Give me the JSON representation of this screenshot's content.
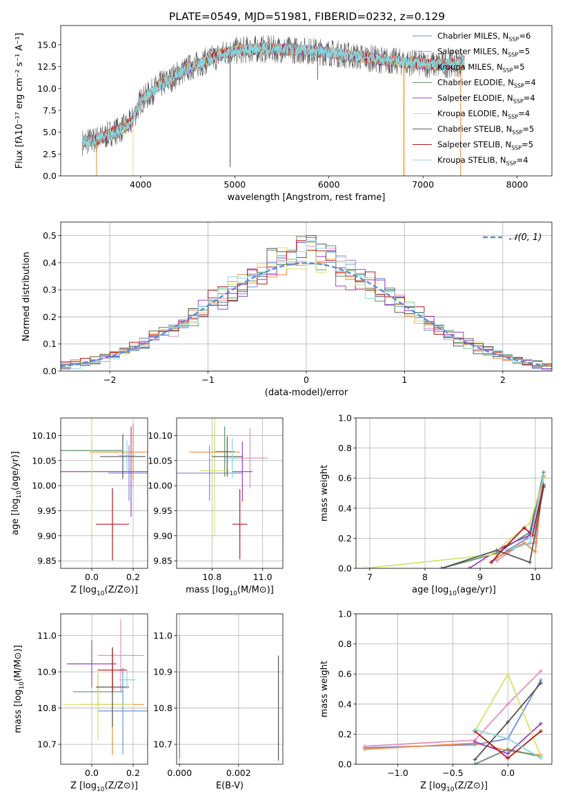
{
  "figure_title": "PLATE=0549, MJD=51981, FIBERID=0232, z=0.129",
  "series_colors": [
    "#6b8fd6",
    "#e58fc0",
    "#f08a3c",
    "#5e8f66",
    "#9b3fc6",
    "#d6e26a",
    "#555555",
    "#b5161b",
    "#86d6e0"
  ],
  "chart_data": [
    {
      "id": "spectrum",
      "type": "line",
      "title": "PLATE=0549, MJD=51981, FIBERID=0232, z=0.129",
      "xlabel": "wavelength [Angstrom, rest frame]",
      "ylabel": "Flux [fλ10⁻¹⁷ erg cm⁻² s⁻¹ A⁻¹]",
      "xlim": [
        3150,
        8370
      ],
      "ylim": [
        0,
        17.2
      ],
      "xticks": [
        4000,
        5000,
        6000,
        7000,
        8000
      ],
      "yticks": [
        0.0,
        2.5,
        5.0,
        7.5,
        10.0,
        12.5,
        15.0
      ],
      "grid": false,
      "legend_position": "top-right",
      "series": [
        {
          "name": "Chabrier MILES, N_SSP=6",
          "name_base": "Chabrier MILES, N",
          "name_sub": "SSP",
          "name_tail": "=6",
          "color": "#6b8fd6"
        },
        {
          "name": "Salpeter MILES, N_SSP=5",
          "name_base": "Salpeter MILES, N",
          "name_sub": "SSP",
          "name_tail": "=5",
          "color": "#e58fc0"
        },
        {
          "name": "Kroupa MILES, N_SSP=5",
          "name_base": "Kroupa MILES, N",
          "name_sub": "SSP",
          "name_tail": "=5",
          "color": "#f08a3c"
        },
        {
          "name": "Chabrier ELODIE, N_SSP=4",
          "name_base": "Chabrier ELODIE, N",
          "name_sub": "SSP",
          "name_tail": "=4",
          "color": "#5e8f66"
        },
        {
          "name": "Salpeter ELODIE, N_SSP=4",
          "name_base": "Salpeter ELODIE, N",
          "name_sub": "SSP",
          "name_tail": "=4",
          "color": "#9b3fc6"
        },
        {
          "name": "Kroupa ELODIE, N_SSP=4",
          "name_base": "Kroupa ELODIE, N",
          "name_sub": "SSP",
          "name_tail": "=4",
          "color": "#d6e26a"
        },
        {
          "name": "Chabrier STELIB, N_SSP=5",
          "name_base": "Chabrier STELIB, N",
          "name_sub": "SSP",
          "name_tail": "=5",
          "color": "#555555"
        },
        {
          "name": "Salpeter STELIB, N_SSP=5",
          "name_base": "Salpeter STELIB, N",
          "name_sub": "SSP",
          "name_tail": "=5",
          "color": "#b5161b"
        },
        {
          "name": "Kroupa STELIB, N_SSP=4",
          "name_base": "Kroupa STELIB, N",
          "name_sub": "SSP",
          "name_tail": "=4",
          "color": "#86d6e0"
        }
      ],
      "continuum_envelope": {
        "x": [
          3380,
          3500,
          3600,
          3700,
          3800,
          3900,
          4000,
          4100,
          4200,
          4300,
          4400,
          4500,
          4600,
          4700,
          4800,
          4900,
          5000,
          5200,
          5400,
          5600,
          5800,
          6000,
          6200,
          6400,
          6600,
          6800,
          7000,
          7200,
          7400,
          7440
        ],
        "y": [
          3.8,
          4.1,
          4.4,
          5.0,
          5.4,
          6.1,
          8.6,
          9.4,
          10.4,
          10.9,
          11.7,
          12.3,
          12.7,
          13.2,
          13.6,
          14.1,
          14.3,
          14.5,
          14.5,
          14.4,
          14.3,
          14.1,
          13.8,
          13.5,
          13.2,
          13.0,
          12.8,
          12.7,
          12.9,
          13.1
        ]
      },
      "sharp_features": [
        {
          "x": 3530,
          "y": 0.0,
          "color": "#f08a3c"
        },
        {
          "x": 3920,
          "y": 0.0,
          "color": "#d6e26a"
        },
        {
          "x": 4950,
          "y": 1.0,
          "color": "#555555"
        },
        {
          "x": 5880,
          "y": 11.0,
          "color": "#555555"
        },
        {
          "x": 6790,
          "y": 0.0,
          "color": "#d6e26a"
        },
        {
          "x": 6800,
          "y": 0.0,
          "color": "#f08a3c"
        },
        {
          "x": 7400,
          "y": 0.0,
          "color": "#f08a3c"
        }
      ]
    },
    {
      "id": "residuals",
      "type": "line",
      "xlabel": "(data-model)/error",
      "ylabel": "Normed distribution",
      "xlim": [
        -2.5,
        2.5
      ],
      "ylim": [
        0,
        0.55
      ],
      "xticks": [
        -2,
        -1,
        0,
        1,
        2
      ],
      "yticks": [
        0.0,
        0.1,
        0.2,
        0.3,
        0.4,
        0.5
      ],
      "grid": true,
      "legend_position": "top-right",
      "reference_curve": {
        "name": "N(0,1)",
        "label_script": "𝒩(0, 1)",
        "color": "#5b8bd6",
        "style": "dashed"
      },
      "bin_width": 0.1
    },
    {
      "id": "age_vs_Z",
      "type": "scatter",
      "xlabel_base": "Z [log",
      "xlabel_sub": "10",
      "xlabel_tail": "(Z/Z⊙)]",
      "ylabel_base": "age  [log",
      "ylabel_sub": "10",
      "ylabel_tail": "(age/yr)]",
      "xlim": [
        -0.15,
        0.27
      ],
      "ylim": [
        9.835,
        10.135
      ],
      "xticks": [
        0.0,
        0.2
      ],
      "yticks": [
        9.85,
        9.9,
        9.95,
        10.0,
        10.05,
        10.1
      ],
      "grid": true,
      "points": [
        {
          "x": 0.18,
          "y": 10.025,
          "xerr": 0.1,
          "yerr": 0.055
        },
        {
          "x": 0.2,
          "y": 10.058,
          "xerr": 0.05,
          "yerr": 0.065
        },
        {
          "x": 0.2,
          "y": 10.067,
          "xerr": 0.21,
          "yerr": 0.055
        },
        {
          "x": 0.0,
          "y": 10.07,
          "xerr": 0.15,
          "yerr": 0.02
        },
        {
          "x": 0.19,
          "y": 10.028,
          "xerr": 0.34,
          "yerr": 0.09
        },
        {
          "x": 0.0,
          "y": 10.028,
          "xerr": 0.0,
          "yerr": 0.12
        },
        {
          "x": 0.15,
          "y": 10.058,
          "xerr": 0.11,
          "yerr": 0.045
        },
        {
          "x": 0.1,
          "y": 9.923,
          "xerr": 0.08,
          "yerr": 0.072
        },
        {
          "x": 0.17,
          "y": 10.06,
          "xerr": 0.04,
          "yerr": 0.03
        }
      ]
    },
    {
      "id": "age_vs_mass",
      "type": "scatter",
      "xlabel_base": "mass [log",
      "xlabel_sub": "10",
      "xlabel_tail": "(M/M⊙)]",
      "ylabel": "",
      "xlim": [
        10.66,
        11.08
      ],
      "ylim": [
        9.835,
        10.135
      ],
      "xticks": [
        10.8,
        11.0
      ],
      "yticks": [
        9.85,
        9.9,
        9.95,
        10.0,
        10.05,
        10.1
      ],
      "grid": true,
      "points": [
        {
          "x": 10.79,
          "y": 10.025,
          "xerr": 0.13,
          "yerr": 0.055
        },
        {
          "x": 10.95,
          "y": 10.055,
          "xerr": 0.07,
          "yerr": 0.06
        },
        {
          "x": 10.81,
          "y": 10.067,
          "xerr": 0.1,
          "yerr": 0.06
        },
        {
          "x": 10.85,
          "y": 10.068,
          "xerr": 0.04,
          "yerr": 0.05
        },
        {
          "x": 10.92,
          "y": 10.028,
          "xerr": 0.04,
          "yerr": 0.06
        },
        {
          "x": 10.81,
          "y": 10.03,
          "xerr": 0.06,
          "yerr": 0.13
        },
        {
          "x": 10.86,
          "y": 10.058,
          "xerr": 0.06,
          "yerr": 0.04
        },
        {
          "x": 10.91,
          "y": 9.923,
          "xerr": 0.03,
          "yerr": 0.07
        },
        {
          "x": 10.88,
          "y": 10.055,
          "xerr": 0.03,
          "yerr": 0.04
        }
      ]
    },
    {
      "id": "weight_vs_age",
      "type": "line",
      "xlabel_base": "age  [log",
      "xlabel_sub": "10",
      "xlabel_tail": "(age/yr)]",
      "ylabel": "mass weight",
      "xlim": [
        6.75,
        10.3
      ],
      "ylim": [
        0,
        1.0
      ],
      "xticks": [
        7,
        8,
        9,
        10
      ],
      "yticks": [
        0.0,
        0.2,
        0.4,
        0.6,
        0.8,
        1.0
      ],
      "grid": true,
      "series": [
        {
          "x": [
            9.2,
            9.5,
            9.85,
            10.0,
            10.15
          ],
          "y": [
            0.04,
            0.12,
            0.2,
            0.31,
            0.56
          ]
        },
        {
          "x": [
            9.3,
            9.7,
            10.0,
            10.15
          ],
          "y": [
            0.05,
            0.15,
            0.17,
            0.62
          ]
        },
        {
          "x": [
            9.3,
            9.8,
            10.0,
            10.15
          ],
          "y": [
            0.07,
            0.17,
            0.11,
            0.61
          ]
        },
        {
          "x": [
            8.3,
            9.3,
            9.9,
            10.15
          ],
          "y": [
            0.0,
            0.1,
            0.24,
            0.64
          ]
        },
        {
          "x": [
            8.8,
            9.4,
            9.9,
            10.15
          ],
          "y": [
            0.0,
            0.14,
            0.22,
            0.6
          ]
        },
        {
          "x": [
            6.9,
            9.2,
            9.9,
            10.15
          ],
          "y": [
            0.0,
            0.09,
            0.3,
            0.6
          ]
        },
        {
          "x": [
            8.3,
            9.3,
            9.9,
            10.15
          ],
          "y": [
            0.0,
            0.12,
            0.04,
            0.54
          ]
        },
        {
          "x": [
            9.2,
            9.45,
            9.8,
            9.95,
            10.15
          ],
          "y": [
            0.04,
            0.14,
            0.27,
            0.22,
            0.55
          ]
        },
        {
          "x": [
            9.6,
            9.9,
            10.15
          ],
          "y": [
            0.13,
            0.17,
            0.62
          ]
        }
      ]
    },
    {
      "id": "mass_vs_Z",
      "type": "scatter",
      "xlabel_base": "Z [log",
      "xlabel_sub": "10",
      "xlabel_tail": "(Z/Z⊙)]",
      "ylabel_base": "mass [log",
      "ylabel_sub": "10",
      "ylabel_tail": "(M/M⊙)]",
      "xlim": [
        -0.15,
        0.27
      ],
      "ylim": [
        10.645,
        11.06
      ],
      "xticks": [
        0.0,
        0.2
      ],
      "yticks": [
        10.7,
        10.8,
        10.9,
        11.0
      ],
      "grid": true,
      "points": [
        {
          "x": 0.15,
          "y": 10.792,
          "xerr": 0.12,
          "yerr": 0.12
        },
        {
          "x": 0.14,
          "y": 10.945,
          "xerr": 0.11,
          "yerr": 0.1
        },
        {
          "x": 0.1,
          "y": 10.81,
          "xerr": 0.15,
          "yerr": 0.14
        },
        {
          "x": 0.03,
          "y": 10.845,
          "xerr": 0.12,
          "yerr": 0.05
        },
        {
          "x": 0.0,
          "y": 10.922,
          "xerr": 0.12,
          "yerr": 0.065
        },
        {
          "x": 0.03,
          "y": 10.81,
          "xerr": 0.17,
          "yerr": 0.1
        },
        {
          "x": 0.1,
          "y": 10.858,
          "xerr": 0.08,
          "yerr": 0.11
        },
        {
          "x": 0.1,
          "y": 10.905,
          "xerr": 0.07,
          "yerr": 0.06
        },
        {
          "x": 0.17,
          "y": 10.878,
          "xerr": 0.04,
          "yerr": 0.025
        }
      ]
    },
    {
      "id": "mass_vs_EBV",
      "type": "scatter",
      "xlabel": "E(B-V)",
      "ylabel": "",
      "xlim": [
        -0.0001,
        0.0035
      ],
      "ylim": [
        10.645,
        11.06
      ],
      "xticks": [
        0.0,
        0.002
      ],
      "yticks": [
        10.7,
        10.8,
        10.9,
        11.0
      ],
      "grid": true,
      "points": [
        {
          "x": 0.0,
          "y": 10.9,
          "xerr": 0,
          "yerr": 0.1
        },
        {
          "x": 0.0,
          "y": 10.78,
          "xerr": 0,
          "yerr": 0.12
        },
        {
          "x": 0.00335,
          "y": 10.8,
          "xerr": 0,
          "yerr": 0.145
        }
      ]
    },
    {
      "id": "weight_vs_Z",
      "type": "line",
      "xlabel_base": "Z [log",
      "xlabel_sub": "10",
      "xlabel_tail": "(Z/Z⊙)]",
      "ylabel": "mass weight",
      "xlim": [
        -1.38,
        0.4
      ],
      "ylim": [
        0,
        1.0
      ],
      "xticks": [
        -1.0,
        -0.5,
        0.0
      ],
      "yticks": [
        0.0,
        0.2,
        0.4,
        0.6,
        0.8,
        1.0
      ],
      "grid": true,
      "series": [
        {
          "x": [
            -1.3,
            -0.3,
            0.0,
            0.3
          ],
          "y": [
            0.11,
            0.13,
            0.17,
            0.56
          ]
        },
        {
          "x": [
            -1.3,
            -0.3,
            0.0,
            0.3
          ],
          "y": [
            0.12,
            0.16,
            0.4,
            0.62
          ]
        },
        {
          "x": [
            -1.3,
            -0.3,
            0.0,
            0.3
          ],
          "y": [
            0.1,
            0.14,
            0.09,
            0.06
          ]
        },
        {
          "x": [
            -0.3,
            0.0,
            0.3
          ],
          "y": [
            0.0,
            0.1,
            0.05
          ]
        },
        {
          "x": [
            -0.3,
            0.0,
            0.3
          ],
          "y": [
            0.15,
            0.07,
            0.27
          ]
        },
        {
          "x": [
            -0.3,
            0.0,
            0.3
          ],
          "y": [
            0.22,
            0.6,
            0.05
          ]
        },
        {
          "x": [
            -0.3,
            0.0,
            0.3
          ],
          "y": [
            0.03,
            0.28,
            0.54
          ]
        },
        {
          "x": [
            -0.3,
            0.0,
            0.3
          ],
          "y": [
            0.22,
            0.04,
            0.22
          ]
        },
        {
          "x": [
            -0.3,
            0.0,
            0.3
          ],
          "y": [
            0.23,
            0.17,
            0.04
          ]
        }
      ]
    }
  ]
}
